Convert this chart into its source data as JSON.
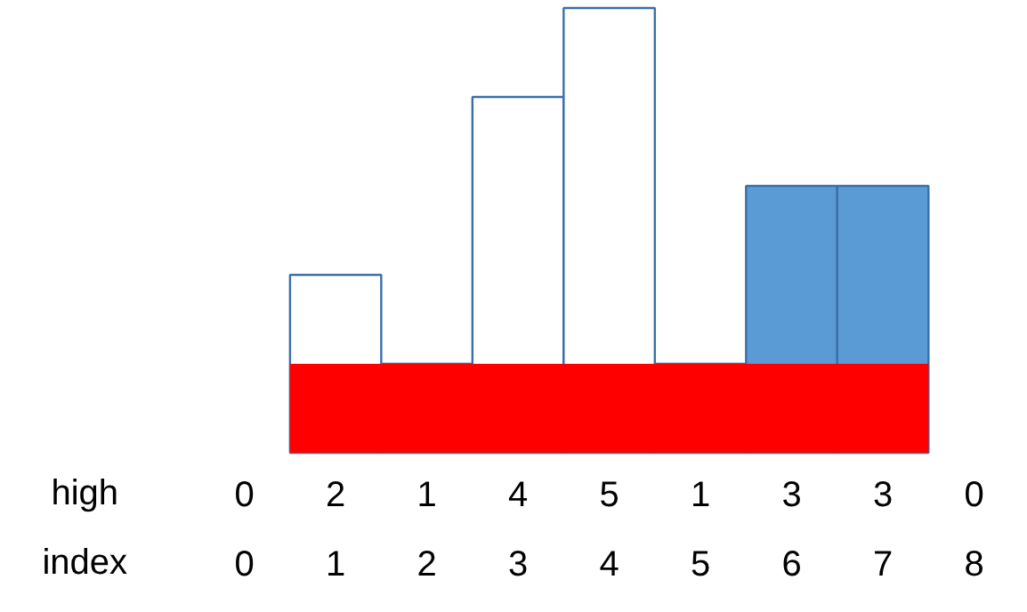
{
  "chart_data": {
    "type": "bar",
    "categories": [
      "0",
      "1",
      "2",
      "3",
      "4",
      "5",
      "6",
      "7",
      "8"
    ],
    "values": [
      0,
      2,
      1,
      4,
      5,
      1,
      3,
      3,
      0
    ],
    "colors": [
      "#ffffff",
      "#ffffff",
      "#ffffff",
      "#ffffff",
      "#ffffff",
      "#ffffff",
      "#5b9bd5",
      "#5b9bd5",
      "#ffffff"
    ],
    "data_labels": true,
    "bands": [
      {
        "axis": "y",
        "from": 0,
        "to": 1,
        "color": "#ff0000"
      }
    ],
    "annotations": [
      "high",
      "index"
    ],
    "grid": false
  }
}
